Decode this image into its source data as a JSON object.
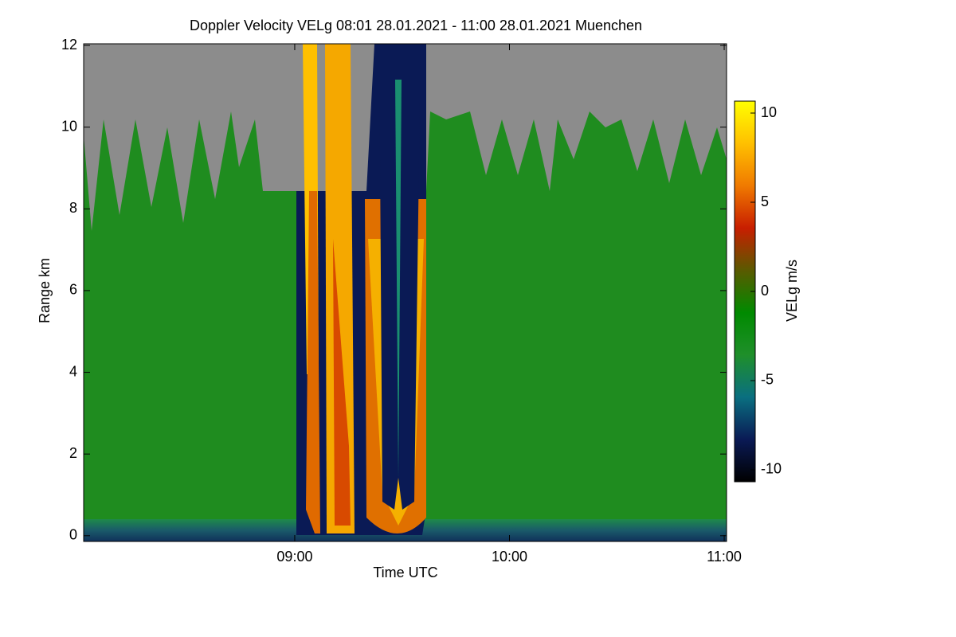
{
  "chart_data": {
    "type": "heatmap",
    "title": "Doppler Velocity VELg   08:01 28.01.2021 - 11:00 28.01.2021 Muenchen",
    "x_label": "Time UTC",
    "y_label": "Range km",
    "colorbar_label": "VELg m/s",
    "xlim": [
      8.017,
      11.011
    ],
    "xticks": [
      {
        "value": 9,
        "label": "09:00"
      },
      {
        "value": 10,
        "label": "10:00"
      },
      {
        "value": 11,
        "label": "11:00"
      }
    ],
    "ylim": [
      -0.14,
      12.04
    ],
    "yticks": [
      0,
      2,
      4,
      6,
      8,
      10,
      12
    ],
    "clim": [
      -10.67,
      10.67
    ],
    "cticks": [
      -10,
      -5,
      0,
      5,
      10
    ],
    "colormap": [
      "#000000",
      "#0a1a55",
      "#0a6f80",
      "#1f8f2a",
      "#008a00",
      "#5a5a00",
      "#c81e00",
      "#f07a00",
      "#ffc000",
      "#ffff00"
    ]
  }
}
